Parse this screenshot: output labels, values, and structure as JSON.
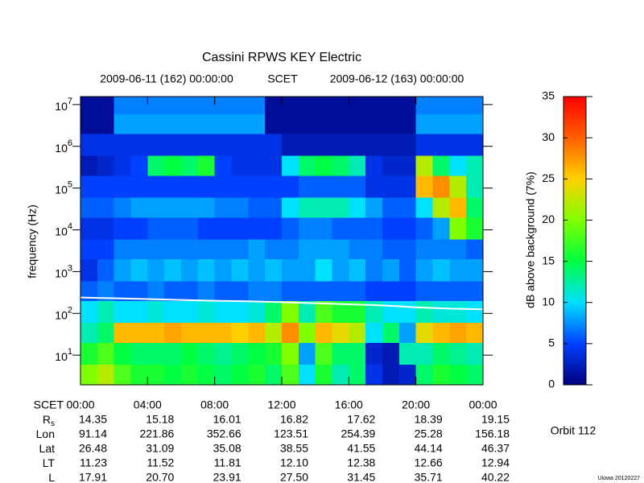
{
  "chart_data": {
    "type": "spectrogram",
    "title": "Cassini RPWS KEY Electric",
    "top_labels": [
      "2009-06-11 (162) 00:00:00",
      "SCET",
      "2009-06-12 (163) 00:00:00"
    ],
    "ylabel": "frequency (Hz)",
    "xlabel": "SCET",
    "log_y": true,
    "xlim": [
      0,
      24
    ],
    "xticks": [
      {
        "value": 0,
        "label": "00:00"
      },
      {
        "value": 4,
        "label": "04:00"
      },
      {
        "value": 8,
        "label": "08:00"
      },
      {
        "value": 12,
        "label": "12:00"
      },
      {
        "value": 16,
        "label": "16:00"
      },
      {
        "value": 20,
        "label": "20:00"
      },
      {
        "value": 24,
        "label": "00:00"
      }
    ],
    "ylim": [
      1.95,
      15500000
    ],
    "yticks": [
      {
        "value": 10,
        "label": "10",
        "exponent": "1"
      },
      {
        "value": 100,
        "label": "10",
        "exponent": "2"
      },
      {
        "value": 1000,
        "label": "10",
        "exponent": "3"
      },
      {
        "value": 10000,
        "label": "10",
        "exponent": "4"
      },
      {
        "value": 100000,
        "label": "10",
        "exponent": "5"
      },
      {
        "value": 1000000,
        "label": "10",
        "exponent": "6"
      },
      {
        "value": 10000000,
        "label": "10",
        "exponent": "7"
      }
    ],
    "spectrogram": {
      "times": [
        0,
        1,
        2,
        3,
        4,
        5,
        6,
        7,
        8,
        9,
        10,
        11,
        12,
        13,
        14,
        15,
        16,
        17,
        18,
        19,
        20,
        21,
        22,
        23,
        24
      ],
      "freqs": [
        1.95,
        6,
        20,
        60,
        200,
        600,
        2000,
        6000,
        20000,
        60000,
        200000,
        600000,
        2000000,
        6000000,
        15500000
      ],
      "values": [
        [
          20,
          22,
          18,
          16,
          16,
          15,
          16,
          15,
          14,
          15,
          16,
          14,
          18,
          10,
          16,
          12,
          14,
          4,
          2,
          3,
          14,
          16,
          15,
          14
        ],
        [
          16,
          18,
          15,
          14,
          14,
          14,
          15,
          14,
          13,
          14,
          15,
          16,
          20,
          8,
          18,
          14,
          14,
          3,
          2,
          12,
          12,
          14,
          13,
          12
        ],
        [
          12,
          14,
          26,
          26,
          26,
          27,
          26,
          26,
          26,
          25,
          26,
          22,
          28,
          20,
          26,
          24,
          22,
          10,
          14,
          8,
          24,
          26,
          27,
          26
        ],
        [
          10,
          12,
          10,
          10,
          11,
          10,
          10,
          11,
          10,
          10,
          11,
          14,
          20,
          12,
          18,
          16,
          16,
          12,
          10,
          10,
          12,
          11,
          11,
          10
        ],
        [
          6,
          7,
          6,
          6,
          7,
          6,
          6,
          7,
          6,
          6,
          7,
          7,
          6,
          6,
          6,
          6,
          6,
          5,
          5,
          5,
          6,
          6,
          6,
          6
        ],
        [
          4,
          6,
          8,
          9,
          8,
          9,
          8,
          9,
          8,
          9,
          8,
          9,
          8,
          8,
          10,
          8,
          9,
          7,
          8,
          6,
          8,
          9,
          8,
          8
        ],
        [
          5,
          5,
          7,
          7,
          7,
          7,
          7,
          7,
          7,
          7,
          8,
          7,
          7,
          8,
          8,
          8,
          7,
          7,
          6,
          6,
          7,
          7,
          7,
          6
        ],
        [
          4,
          4,
          5,
          5,
          6,
          6,
          6,
          5,
          5,
          5,
          5,
          5,
          6,
          7,
          7,
          6,
          6,
          6,
          5,
          5,
          6,
          8,
          20,
          16
        ],
        [
          6,
          6,
          7,
          8,
          8,
          8,
          8,
          8,
          7,
          7,
          6,
          6,
          10,
          12,
          12,
          12,
          10,
          8,
          6,
          6,
          10,
          22,
          26,
          14
        ],
        [
          5,
          5,
          5,
          5,
          5,
          5,
          5,
          5,
          5,
          5,
          5,
          5,
          5,
          6,
          6,
          6,
          6,
          4,
          4,
          4,
          26,
          28,
          22,
          12
        ],
        [
          2,
          3,
          4,
          5,
          14,
          15,
          14,
          16,
          5,
          4,
          4,
          4,
          10,
          14,
          15,
          14,
          12,
          4,
          3,
          3,
          22,
          14,
          10,
          12
        ],
        [
          4,
          4,
          4,
          4,
          4,
          4,
          4,
          4,
          4,
          4,
          4,
          4,
          2,
          2,
          2,
          2,
          2,
          2,
          2,
          2,
          4,
          4,
          4,
          4
        ],
        [
          1,
          1,
          8,
          8,
          8,
          8,
          8,
          8,
          8,
          8,
          8,
          1,
          1,
          1,
          1,
          1,
          1,
          1,
          1,
          1,
          8,
          8,
          8,
          8
        ],
        [
          1,
          1,
          7,
          7,
          7,
          7,
          7,
          7,
          7,
          7,
          7,
          1,
          1,
          1,
          1,
          1,
          1,
          1,
          1,
          1,
          7,
          7,
          7,
          7
        ]
      ]
    },
    "lines": [
      {
        "color": "#ffffff",
        "x": [
          0,
          2,
          4,
          6,
          8,
          10,
          12,
          14,
          16,
          18,
          20,
          22,
          24
        ],
        "values": [
          240,
          230,
          220,
          210,
          200,
          195,
          185,
          175,
          165,
          155,
          140,
          130,
          125
        ]
      }
    ],
    "colorbar": {
      "label": "dB above background (7%)",
      "lim": [
        0,
        35
      ],
      "ticks": [
        0,
        5,
        10,
        15,
        20,
        25,
        30,
        35
      ],
      "colors": [
        "#000080",
        "#0040ff",
        "#00e0ff",
        "#00ff40",
        "#80ff00",
        "#ffd000",
        "#ff6000",
        "#ff0000"
      ]
    },
    "ephemeris": [
      {
        "label": "R",
        "subscript": "s",
        "values": [
          "14.35",
          "15.18",
          "16.01",
          "16.82",
          "17.62",
          "18.39",
          "19.15"
        ]
      },
      {
        "label": "Lon",
        "values": [
          "91.14",
          "221.86",
          "352.66",
          "123.51",
          "254.39",
          "25.28",
          "156.18"
        ]
      },
      {
        "label": "Lat",
        "values": [
          "26.48",
          "31.09",
          "35.08",
          "38.55",
          "41.55",
          "44.14",
          "46.37"
        ]
      },
      {
        "label": "LT",
        "values": [
          "11.23",
          "11.52",
          "11.81",
          "12.10",
          "12.38",
          "12.66",
          "12.94"
        ]
      },
      {
        "label": "L",
        "values": [
          "17.91",
          "20.70",
          "23.91",
          "27.50",
          "31.45",
          "35.71",
          "40.22"
        ]
      }
    ],
    "orbit": "Orbit 112",
    "credit": "Uiowa 20120227"
  }
}
